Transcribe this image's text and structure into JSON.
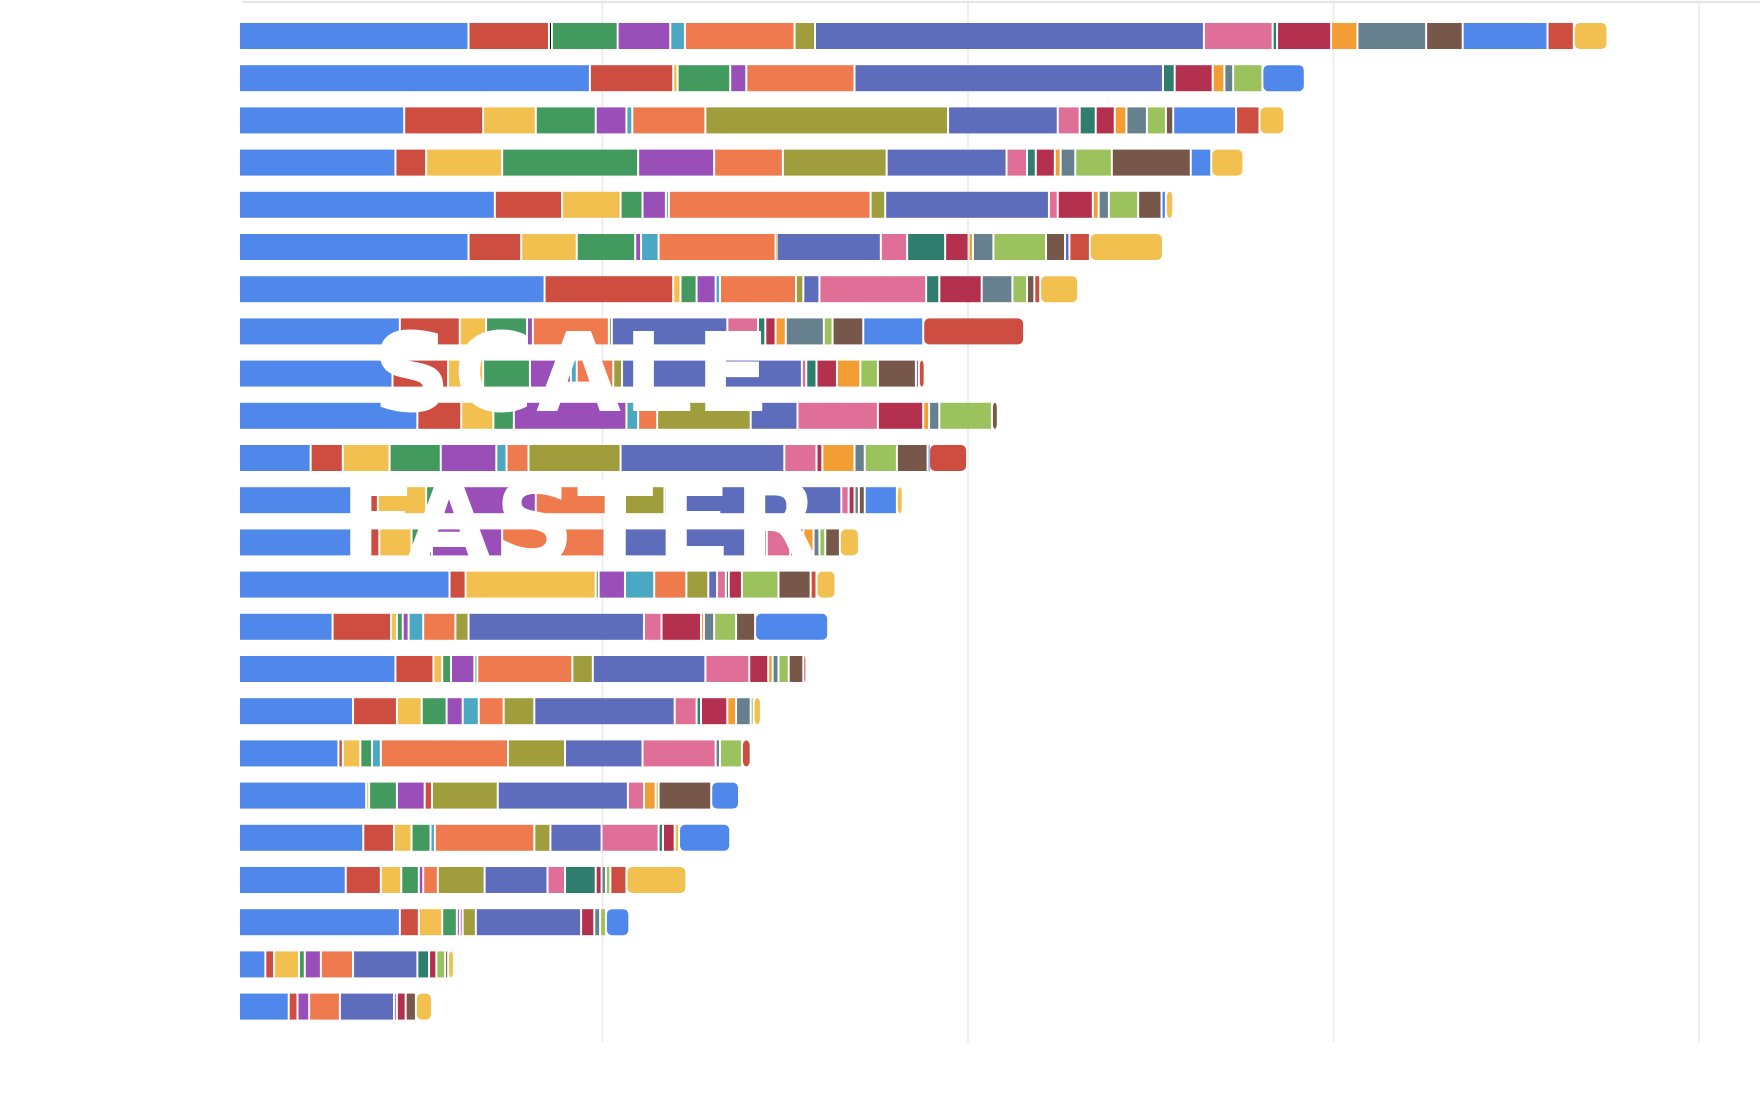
{
  "overlay": {
    "line1": "SCALE",
    "line2": "FASTER"
  },
  "colors": [
    "#4F87EA",
    "#CD4E40",
    "#F2C04F",
    "#429A5E",
    "#9A4FB8",
    "#4BA8C2",
    "#EE7A4D",
    "#A09D3C",
    "#5D6CBB",
    "#E06F98",
    "#2F7D6D",
    "#B4304F",
    "#F39E35",
    "#66808E",
    "#9CC25E",
    "#76574A"
  ],
  "chart_data": {
    "type": "bar",
    "orientation": "horizontal",
    "stacked": true,
    "title": "",
    "xlabel": "",
    "ylabel": "",
    "categories": [],
    "grid": true,
    "xlim": [
      0,
      1.0
    ],
    "rows": [
      [
        [
          0,
          0.157
        ],
        [
          1,
          0.055
        ],
        [
          16,
          0.002
        ],
        [
          3,
          0.045
        ],
        [
          4,
          0.036
        ],
        [
          5,
          0.01
        ],
        [
          6,
          0.075
        ],
        [
          7,
          0.014
        ],
        [
          8,
          0.266
        ],
        [
          9,
          0.047
        ],
        [
          10,
          0.003
        ],
        [
          11,
          0.037
        ],
        [
          12,
          0.018
        ],
        [
          13,
          0.047
        ],
        [
          15,
          0.025
        ],
        [
          0,
          0.058
        ],
        [
          1,
          0.018
        ],
        [
          2,
          0.023
        ]
      ],
      [
        [
          0,
          0.24
        ],
        [
          1,
          0.057
        ],
        [
          2,
          0.003
        ],
        [
          3,
          0.036
        ],
        [
          4,
          0.011
        ],
        [
          6,
          0.074
        ],
        [
          8,
          0.211
        ],
        [
          10,
          0.008
        ],
        [
          11,
          0.026
        ],
        [
          12,
          0.008
        ],
        [
          13,
          0.006
        ],
        [
          14,
          0.02
        ],
        [
          0,
          0.029
        ]
      ],
      [
        [
          0,
          0.113
        ],
        [
          1,
          0.054
        ],
        [
          2,
          0.036
        ],
        [
          3,
          0.041
        ],
        [
          4,
          0.021
        ],
        [
          5,
          0.004
        ],
        [
          6,
          0.05
        ],
        [
          7,
          0.166
        ],
        [
          8,
          0.075
        ],
        [
          9,
          0.015
        ],
        [
          10,
          0.011
        ],
        [
          11,
          0.013
        ],
        [
          12,
          0.008
        ],
        [
          13,
          0.014
        ],
        [
          14,
          0.013
        ],
        [
          15,
          0.005
        ],
        [
          0,
          0.043
        ],
        [
          1,
          0.016
        ],
        [
          2,
          0.017
        ]
      ],
      [
        [
          0,
          0.107
        ],
        [
          1,
          0.021
        ],
        [
          2,
          0.052
        ],
        [
          3,
          0.093
        ],
        [
          4,
          0.052
        ],
        [
          6,
          0.047
        ],
        [
          7,
          0.071
        ],
        [
          8,
          0.082
        ],
        [
          9,
          0.014
        ],
        [
          10,
          0.006
        ],
        [
          11,
          0.013
        ],
        [
          12,
          0.004
        ],
        [
          13,
          0.01
        ],
        [
          14,
          0.025
        ],
        [
          15,
          0.054
        ],
        [
          0,
          0.014
        ],
        [
          2,
          0.022
        ]
      ],
      [
        [
          0,
          0.175
        ],
        [
          1,
          0.046
        ],
        [
          2,
          0.04
        ],
        [
          3,
          0.015
        ],
        [
          4,
          0.016
        ],
        [
          5,
          0.002
        ],
        [
          6,
          0.138
        ],
        [
          7,
          0.01
        ],
        [
          8,
          0.112
        ],
        [
          9,
          0.006
        ],
        [
          11,
          0.024
        ],
        [
          12,
          0.004
        ],
        [
          13,
          0.007
        ],
        [
          14,
          0.02
        ],
        [
          15,
          0.016
        ],
        [
          0,
          0.003
        ],
        [
          2,
          0.005
        ]
      ],
      [
        [
          0,
          0.157
        ],
        [
          1,
          0.036
        ],
        [
          2,
          0.038
        ],
        [
          3,
          0.04
        ],
        [
          4,
          0.004
        ],
        [
          5,
          0.012
        ],
        [
          6,
          0.08
        ],
        [
          7,
          0.001
        ],
        [
          8,
          0.071
        ],
        [
          9,
          0.018
        ],
        [
          10,
          0.026
        ],
        [
          11,
          0.016
        ],
        [
          12,
          0.003
        ],
        [
          13,
          0.014
        ],
        [
          14,
          0.036
        ],
        [
          15,
          0.013
        ],
        [
          8,
          0.003
        ],
        [
          1,
          0.014
        ],
        [
          2,
          0.05
        ]
      ],
      [
        [
          0,
          0.209
        ],
        [
          1,
          0.088
        ],
        [
          2,
          0.005
        ],
        [
          3,
          0.011
        ],
        [
          4,
          0.013
        ],
        [
          5,
          0.003
        ],
        [
          6,
          0.052
        ],
        [
          7,
          0.005
        ],
        [
          8,
          0.011
        ],
        [
          9,
          0.073
        ],
        [
          10,
          0.009
        ],
        [
          11,
          0.029
        ],
        [
          13,
          0.021
        ],
        [
          14,
          0.01
        ],
        [
          15,
          0.005
        ],
        [
          1,
          0.004
        ],
        [
          2,
          0.026
        ]
      ],
      [
        [
          0,
          0.11
        ],
        [
          1,
          0.041
        ],
        [
          2,
          0.018
        ],
        [
          3,
          0.028
        ],
        [
          4,
          0.004
        ],
        [
          6,
          0.052
        ],
        [
          7,
          0.002
        ],
        [
          8,
          0.079
        ],
        [
          9,
          0.021
        ],
        [
          10,
          0.005
        ],
        [
          11,
          0.007
        ],
        [
          12,
          0.007
        ],
        [
          13,
          0.026
        ],
        [
          14,
          0.006
        ],
        [
          15,
          0.021
        ],
        [
          0,
          0.041
        ],
        [
          1,
          0.069
        ]
      ],
      [
        [
          0,
          0.105
        ],
        [
          1,
          0.038
        ],
        [
          2,
          0.024
        ],
        [
          3,
          0.032
        ],
        [
          4,
          0.028
        ],
        [
          5,
          0.004
        ],
        [
          6,
          0.025
        ],
        [
          7,
          0.006
        ],
        [
          8,
          0.123
        ],
        [
          9,
          0.003
        ],
        [
          10,
          0.007
        ],
        [
          11,
          0.014
        ],
        [
          12,
          0.016
        ],
        [
          14,
          0.012
        ],
        [
          15,
          0.026
        ],
        [
          8,
          0.002
        ],
        [
          1,
          0.004
        ]
      ],
      [
        [
          0,
          0.122
        ],
        [
          1,
          0.03
        ],
        [
          2,
          0.022
        ],
        [
          3,
          0.014
        ],
        [
          4,
          0.077
        ],
        [
          5,
          0.008
        ],
        [
          6,
          0.013
        ],
        [
          7,
          0.064
        ],
        [
          8,
          0.032
        ],
        [
          9,
          0.055
        ],
        [
          11,
          0.031
        ],
        [
          12,
          0.004
        ],
        [
          13,
          0.007
        ],
        [
          14,
          0.036
        ],
        [
          15,
          0.004
        ]
      ],
      [
        [
          0,
          0.049
        ],
        [
          1,
          0.022
        ],
        [
          2,
          0.032
        ],
        [
          3,
          0.035
        ],
        [
          4,
          0.038
        ],
        [
          5,
          0.007
        ],
        [
          6,
          0.015
        ],
        [
          7,
          0.063
        ],
        [
          8,
          0.112
        ],
        [
          9,
          0.022
        ],
        [
          11,
          0.004
        ],
        [
          12,
          0.022
        ],
        [
          13,
          0.007
        ],
        [
          14,
          0.022
        ],
        [
          15,
          0.021
        ],
        [
          0,
          0.001
        ],
        [
          1,
          0.026
        ]
      ],
      [
        [
          0,
          0.086
        ],
        [
          1,
          0.009
        ],
        [
          2,
          0.033
        ],
        [
          3,
          0.012
        ],
        [
          4,
          0.063
        ],
        [
          6,
          0.061
        ],
        [
          7,
          0.027
        ],
        [
          8,
          0.121
        ],
        [
          9,
          0.005
        ],
        [
          11,
          0.004
        ],
        [
          13,
          0.003
        ],
        [
          15,
          0.004
        ],
        [
          0,
          0.022
        ],
        [
          2,
          0.004
        ]
      ],
      [
        [
          0,
          0.082
        ],
        [
          1,
          0.014
        ],
        [
          2,
          0.022
        ],
        [
          3,
          0.014
        ],
        [
          4,
          0.048
        ],
        [
          6,
          0.07
        ],
        [
          7,
          0.007
        ],
        [
          8,
          0.104
        ],
        [
          9,
          0.016
        ],
        [
          11,
          0.009
        ],
        [
          12,
          0.007
        ],
        [
          13,
          0.004
        ],
        [
          14,
          0.004
        ],
        [
          15,
          0.01
        ],
        [
          2,
          0.013
        ]
      ],
      [
        [
          0,
          0.144
        ],
        [
          1,
          0.011
        ],
        [
          2,
          0.089
        ],
        [
          3,
          0.002
        ],
        [
          4,
          0.018
        ],
        [
          5,
          0.02
        ],
        [
          6,
          0.022
        ],
        [
          7,
          0.015
        ],
        [
          8,
          0.006
        ],
        [
          9,
          0.006
        ],
        [
          10,
          0.002
        ],
        [
          11,
          0.009
        ],
        [
          14,
          0.025
        ],
        [
          15,
          0.022
        ],
        [
          1,
          0.004
        ],
        [
          2,
          0.013
        ]
      ],
      [
        [
          0,
          0.064
        ],
        [
          1,
          0.04
        ],
        [
          2,
          0.004
        ],
        [
          3,
          0.004
        ],
        [
          4,
          0.004
        ],
        [
          5,
          0.01
        ],
        [
          6,
          0.022
        ],
        [
          7,
          0.009
        ],
        [
          8,
          0.12
        ],
        [
          9,
          0.012
        ],
        [
          11,
          0.027
        ],
        [
          12,
          0.002
        ],
        [
          13,
          0.007
        ],
        [
          14,
          0.015
        ],
        [
          15,
          0.013
        ],
        [
          0,
          0.05
        ]
      ],
      [
        [
          0,
          0.107
        ],
        [
          1,
          0.026
        ],
        [
          2,
          0.006
        ],
        [
          3,
          0.006
        ],
        [
          4,
          0.016
        ],
        [
          5,
          0.002
        ],
        [
          6,
          0.065
        ],
        [
          7,
          0.014
        ],
        [
          8,
          0.077
        ],
        [
          9,
          0.03
        ],
        [
          11,
          0.013
        ],
        [
          12,
          0.003
        ],
        [
          13,
          0.004
        ],
        [
          14,
          0.007
        ],
        [
          15,
          0.01
        ],
        [
          1,
          0.002
        ]
      ],
      [
        [
          0,
          0.078
        ],
        [
          1,
          0.03
        ],
        [
          2,
          0.017
        ],
        [
          3,
          0.017
        ],
        [
          4,
          0.011
        ],
        [
          5,
          0.011
        ],
        [
          6,
          0.017
        ],
        [
          7,
          0.021
        ],
        [
          8,
          0.096
        ],
        [
          9,
          0.015
        ],
        [
          10,
          0.003
        ],
        [
          11,
          0.018
        ],
        [
          12,
          0.006
        ],
        [
          13,
          0.01
        ],
        [
          14,
          0.002
        ],
        [
          2,
          0.005
        ]
      ],
      [
        [
          0,
          0.068
        ],
        [
          1,
          0.003
        ],
        [
          2,
          0.012
        ],
        [
          3,
          0.008
        ],
        [
          5,
          0.006
        ],
        [
          6,
          0.087
        ],
        [
          7,
          0.039
        ],
        [
          8,
          0.053
        ],
        [
          9,
          0.05
        ],
        [
          13,
          0.003
        ],
        [
          14,
          0.015
        ],
        [
          1,
          0.006
        ]
      ],
      [
        [
          0,
          0.087
        ],
        [
          2,
          0.002
        ],
        [
          3,
          0.019
        ],
        [
          4,
          0.019
        ],
        [
          1,
          0.005
        ],
        [
          7,
          0.045
        ],
        [
          8,
          0.089
        ],
        [
          9,
          0.011
        ],
        [
          12,
          0.008
        ],
        [
          14,
          0.002
        ],
        [
          15,
          0.036
        ],
        [
          0,
          0.019
        ]
      ],
      [
        [
          0,
          0.085
        ],
        [
          1,
          0.021
        ],
        [
          2,
          0.012
        ],
        [
          3,
          0.013
        ],
        [
          5,
          0.003
        ],
        [
          6,
          0.068
        ],
        [
          7,
          0.011
        ],
        [
          8,
          0.035
        ],
        [
          9,
          0.039
        ],
        [
          10,
          0.003
        ],
        [
          11,
          0.008
        ],
        [
          2,
          0.003
        ],
        [
          0,
          0.035
        ]
      ],
      [
        [
          0,
          0.073
        ],
        [
          1,
          0.024
        ],
        [
          2,
          0.014
        ],
        [
          3,
          0.012
        ],
        [
          4,
          0.003
        ],
        [
          6,
          0.01
        ],
        [
          7,
          0.032
        ],
        [
          8,
          0.043
        ],
        [
          9,
          0.012
        ],
        [
          10,
          0.021
        ],
        [
          11,
          0.004
        ],
        [
          13,
          0.003
        ],
        [
          14,
          0.003
        ],
        [
          1,
          0.011
        ],
        [
          2,
          0.041
        ]
      ],
      [
        [
          0,
          0.11
        ],
        [
          1,
          0.013
        ],
        [
          2,
          0.016
        ],
        [
          3,
          0.01
        ],
        [
          4,
          0.002
        ],
        [
          9,
          0.002
        ],
        [
          7,
          0.009
        ],
        [
          8,
          0.072
        ],
        [
          11,
          0.009
        ],
        [
          13,
          0.004
        ],
        [
          14,
          0.004
        ],
        [
          0,
          0.016
        ]
      ],
      [
        [
          0,
          0.018
        ],
        [
          1,
          0.006
        ],
        [
          2,
          0.017
        ],
        [
          3,
          0.004
        ],
        [
          4,
          0.011
        ],
        [
          6,
          0.022
        ],
        [
          8,
          0.044
        ],
        [
          10,
          0.008
        ],
        [
          11,
          0.005
        ],
        [
          14,
          0.006
        ],
        [
          15,
          0.002
        ],
        [
          2,
          0.004
        ]
      ],
      [
        [
          0,
          0.034
        ],
        [
          1,
          0.006
        ],
        [
          4,
          0.008
        ],
        [
          6,
          0.021
        ],
        [
          8,
          0.037
        ],
        [
          9,
          0.002
        ],
        [
          11,
          0.006
        ],
        [
          15,
          0.007
        ],
        [
          2,
          0.011
        ]
      ]
    ]
  }
}
